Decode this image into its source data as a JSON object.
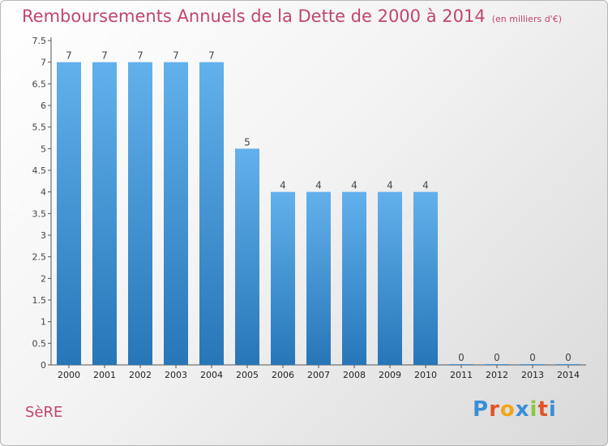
{
  "title": "Remboursements Annuels de la Dette de 2000 à 2014",
  "unit_note": "(en milliers d'€)",
  "commune": "SèRE",
  "logo": {
    "text": "Proxiti",
    "letters": [
      {
        "ch": "P",
        "color": "#3a8ed6"
      },
      {
        "ch": "r",
        "color": "#e0542a"
      },
      {
        "ch": "o",
        "color": "#f2a51a"
      },
      {
        "ch": "x",
        "color": "#3a8ed6"
      },
      {
        "ch": "i",
        "color": "#8cc63f"
      },
      {
        "ch": "t",
        "color": "#e0542a"
      },
      {
        "ch": "i",
        "color": "#3a8ed6"
      }
    ]
  },
  "colors": {
    "title": "#c0466e",
    "bar_top": "#62b1ec",
    "bar_bottom": "#2776b8",
    "axis": "#555555",
    "label": "#444444"
  },
  "chart_data": {
    "type": "bar",
    "categories": [
      "2000",
      "2001",
      "2002",
      "2003",
      "2004",
      "2005",
      "2006",
      "2007",
      "2008",
      "2009",
      "2010",
      "2011",
      "2012",
      "2013",
      "2014"
    ],
    "values": [
      7,
      7,
      7,
      7,
      7,
      5,
      4,
      4,
      4,
      4,
      4,
      0,
      0,
      0,
      0
    ],
    "data_labels": [
      "7",
      "7",
      "7",
      "7",
      "7",
      "5",
      "4",
      "4",
      "4",
      "4",
      "4",
      "0",
      "0",
      "0",
      "0"
    ],
    "ylim": [
      0,
      7.5
    ],
    "yticks": [
      "0",
      "0.5",
      "1",
      "1.5",
      "2",
      "2.5",
      "3",
      "3.5",
      "4",
      "4.5",
      "5",
      "5.5",
      "6",
      "6.5",
      "7",
      "7.5"
    ],
    "grid": false,
    "title": "Remboursements Annuels de la Dette de 2000 à 2014",
    "xlabel": "",
    "ylabel": ""
  }
}
